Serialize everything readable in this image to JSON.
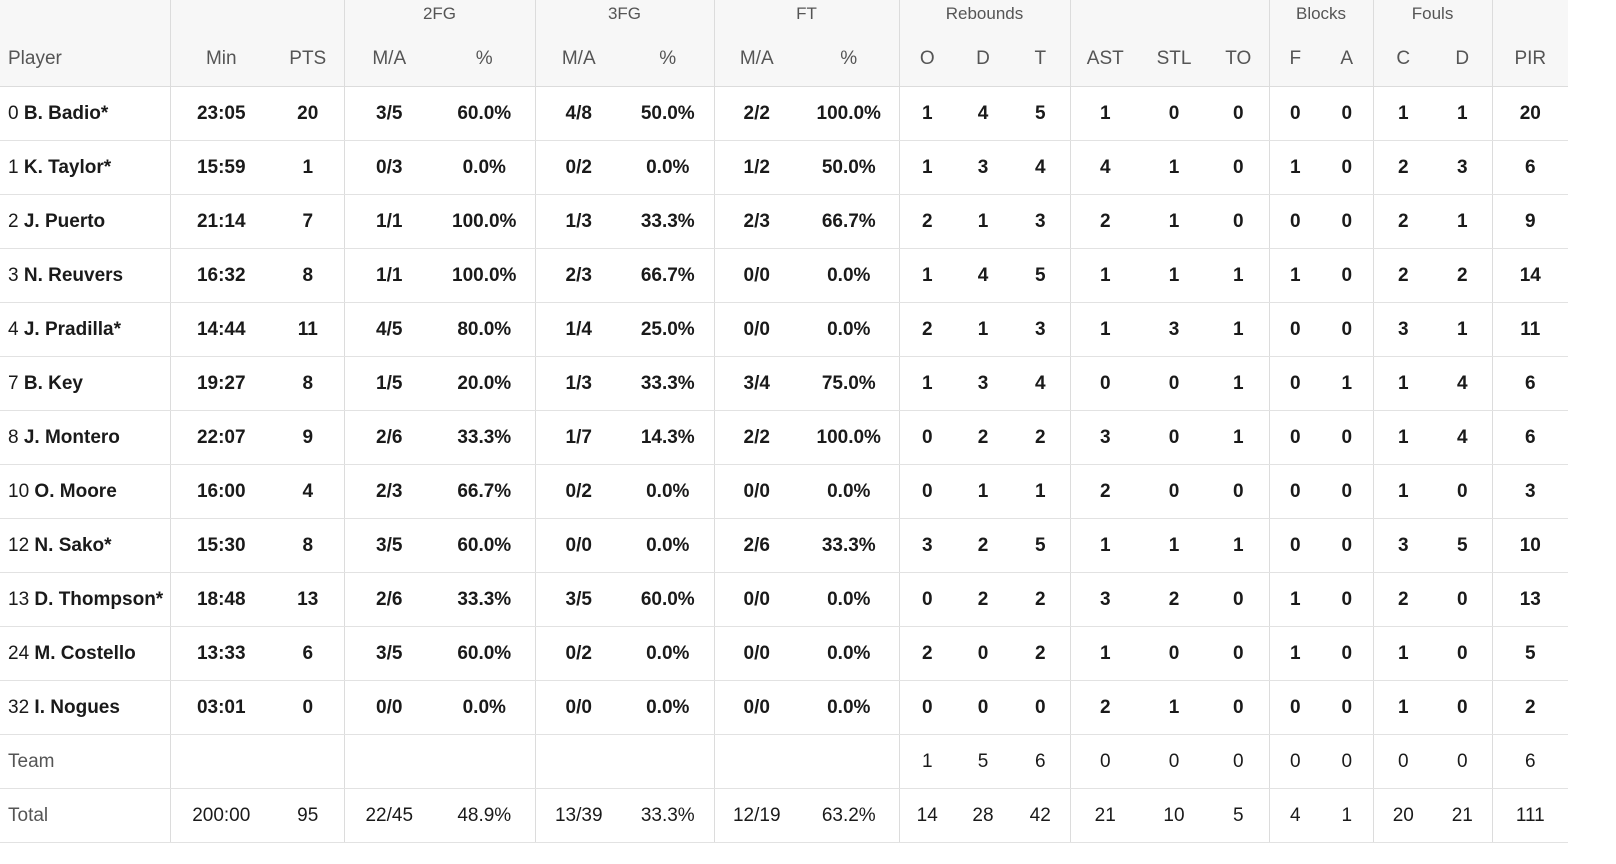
{
  "headers": {
    "groups": {
      "fg2": "2FG",
      "fg3": "3FG",
      "ft": "FT",
      "rebounds": "Rebounds",
      "blocks": "Blocks",
      "fouls": "Fouls"
    },
    "columns": {
      "player": "Player",
      "min": "Min",
      "pts": "PTS",
      "fg2_ma": "M/A",
      "fg2_pct": "%",
      "fg3_ma": "M/A",
      "fg3_pct": "%",
      "ft_ma": "M/A",
      "ft_pct": "%",
      "reb_o": "O",
      "reb_d": "D",
      "reb_t": "T",
      "ast": "AST",
      "stl": "STL",
      "to": "TO",
      "blk_f": "F",
      "blk_a": "A",
      "foul_c": "C",
      "foul_d": "D",
      "pir": "PIR"
    }
  },
  "rows": [
    {
      "num": "0",
      "name": "B. Badio*",
      "min": "23:05",
      "pts": "20",
      "fg2_ma": "3/5",
      "fg2_pct": "60.0%",
      "fg3_ma": "4/8",
      "fg3_pct": "50.0%",
      "ft_ma": "2/2",
      "ft_pct": "100.0%",
      "reb_o": "1",
      "reb_d": "4",
      "reb_t": "5",
      "ast": "1",
      "stl": "0",
      "to": "0",
      "blk_f": "0",
      "blk_a": "0",
      "foul_c": "1",
      "foul_d": "1",
      "pir": "20"
    },
    {
      "num": "1",
      "name": "K. Taylor*",
      "min": "15:59",
      "pts": "1",
      "fg2_ma": "0/3",
      "fg2_pct": "0.0%",
      "fg3_ma": "0/2",
      "fg3_pct": "0.0%",
      "ft_ma": "1/2",
      "ft_pct": "50.0%",
      "reb_o": "1",
      "reb_d": "3",
      "reb_t": "4",
      "ast": "4",
      "stl": "1",
      "to": "0",
      "blk_f": "1",
      "blk_a": "0",
      "foul_c": "2",
      "foul_d": "3",
      "pir": "6"
    },
    {
      "num": "2",
      "name": "J. Puerto",
      "min": "21:14",
      "pts": "7",
      "fg2_ma": "1/1",
      "fg2_pct": "100.0%",
      "fg3_ma": "1/3",
      "fg3_pct": "33.3%",
      "ft_ma": "2/3",
      "ft_pct": "66.7%",
      "reb_o": "2",
      "reb_d": "1",
      "reb_t": "3",
      "ast": "2",
      "stl": "1",
      "to": "0",
      "blk_f": "0",
      "blk_a": "0",
      "foul_c": "2",
      "foul_d": "1",
      "pir": "9"
    },
    {
      "num": "3",
      "name": "N. Reuvers",
      "min": "16:32",
      "pts": "8",
      "fg2_ma": "1/1",
      "fg2_pct": "100.0%",
      "fg3_ma": "2/3",
      "fg3_pct": "66.7%",
      "ft_ma": "0/0",
      "ft_pct": "0.0%",
      "reb_o": "1",
      "reb_d": "4",
      "reb_t": "5",
      "ast": "1",
      "stl": "1",
      "to": "1",
      "blk_f": "1",
      "blk_a": "0",
      "foul_c": "2",
      "foul_d": "2",
      "pir": "14"
    },
    {
      "num": "4",
      "name": "J. Pradilla*",
      "min": "14:44",
      "pts": "11",
      "fg2_ma": "4/5",
      "fg2_pct": "80.0%",
      "fg3_ma": "1/4",
      "fg3_pct": "25.0%",
      "ft_ma": "0/0",
      "ft_pct": "0.0%",
      "reb_o": "2",
      "reb_d": "1",
      "reb_t": "3",
      "ast": "1",
      "stl": "3",
      "to": "1",
      "blk_f": "0",
      "blk_a": "0",
      "foul_c": "3",
      "foul_d": "1",
      "pir": "11"
    },
    {
      "num": "7",
      "name": "B. Key",
      "min": "19:27",
      "pts": "8",
      "fg2_ma": "1/5",
      "fg2_pct": "20.0%",
      "fg3_ma": "1/3",
      "fg3_pct": "33.3%",
      "ft_ma": "3/4",
      "ft_pct": "75.0%",
      "reb_o": "1",
      "reb_d": "3",
      "reb_t": "4",
      "ast": "0",
      "stl": "0",
      "to": "1",
      "blk_f": "0",
      "blk_a": "1",
      "foul_c": "1",
      "foul_d": "4",
      "pir": "6"
    },
    {
      "num": "8",
      "name": "J. Montero",
      "min": "22:07",
      "pts": "9",
      "fg2_ma": "2/6",
      "fg2_pct": "33.3%",
      "fg3_ma": "1/7",
      "fg3_pct": "14.3%",
      "ft_ma": "2/2",
      "ft_pct": "100.0%",
      "reb_o": "0",
      "reb_d": "2",
      "reb_t": "2",
      "ast": "3",
      "stl": "0",
      "to": "1",
      "blk_f": "0",
      "blk_a": "0",
      "foul_c": "1",
      "foul_d": "4",
      "pir": "6"
    },
    {
      "num": "10",
      "name": "O. Moore",
      "min": "16:00",
      "pts": "4",
      "fg2_ma": "2/3",
      "fg2_pct": "66.7%",
      "fg3_ma": "0/2",
      "fg3_pct": "0.0%",
      "ft_ma": "0/0",
      "ft_pct": "0.0%",
      "reb_o": "0",
      "reb_d": "1",
      "reb_t": "1",
      "ast": "2",
      "stl": "0",
      "to": "0",
      "blk_f": "0",
      "blk_a": "0",
      "foul_c": "1",
      "foul_d": "0",
      "pir": "3"
    },
    {
      "num": "12",
      "name": "N. Sako*",
      "min": "15:30",
      "pts": "8",
      "fg2_ma": "3/5",
      "fg2_pct": "60.0%",
      "fg3_ma": "0/0",
      "fg3_pct": "0.0%",
      "ft_ma": "2/6",
      "ft_pct": "33.3%",
      "reb_o": "3",
      "reb_d": "2",
      "reb_t": "5",
      "ast": "1",
      "stl": "1",
      "to": "1",
      "blk_f": "0",
      "blk_a": "0",
      "foul_c": "3",
      "foul_d": "5",
      "pir": "10"
    },
    {
      "num": "13",
      "name": "D. Thompson*",
      "min": "18:48",
      "pts": "13",
      "fg2_ma": "2/6",
      "fg2_pct": "33.3%",
      "fg3_ma": "3/5",
      "fg3_pct": "60.0%",
      "ft_ma": "0/0",
      "ft_pct": "0.0%",
      "reb_o": "0",
      "reb_d": "2",
      "reb_t": "2",
      "ast": "3",
      "stl": "2",
      "to": "0",
      "blk_f": "1",
      "blk_a": "0",
      "foul_c": "2",
      "foul_d": "0",
      "pir": "13"
    },
    {
      "num": "24",
      "name": "M. Costello",
      "min": "13:33",
      "pts": "6",
      "fg2_ma": "3/5",
      "fg2_pct": "60.0%",
      "fg3_ma": "0/2",
      "fg3_pct": "0.0%",
      "ft_ma": "0/0",
      "ft_pct": "0.0%",
      "reb_o": "2",
      "reb_d": "0",
      "reb_t": "2",
      "ast": "1",
      "stl": "0",
      "to": "0",
      "blk_f": "1",
      "blk_a": "0",
      "foul_c": "1",
      "foul_d": "0",
      "pir": "5"
    },
    {
      "num": "32",
      "name": "I. Nogues",
      "min": "03:01",
      "pts": "0",
      "fg2_ma": "0/0",
      "fg2_pct": "0.0%",
      "fg3_ma": "0/0",
      "fg3_pct": "0.0%",
      "ft_ma": "0/0",
      "ft_pct": "0.0%",
      "reb_o": "0",
      "reb_d": "0",
      "reb_t": "0",
      "ast": "2",
      "stl": "1",
      "to": "0",
      "blk_f": "0",
      "blk_a": "0",
      "foul_c": "1",
      "foul_d": "0",
      "pir": "2"
    }
  ],
  "team": {
    "label": "Team",
    "reb_o": "1",
    "reb_d": "5",
    "reb_t": "6",
    "ast": "0",
    "stl": "0",
    "to": "0",
    "blk_f": "0",
    "blk_a": "0",
    "foul_c": "0",
    "foul_d": "0",
    "pir": "6"
  },
  "total": {
    "label": "Total",
    "min": "200:00",
    "pts": "95",
    "fg2_ma": "22/45",
    "fg2_pct": "48.9%",
    "fg3_ma": "13/39",
    "fg3_pct": "33.3%",
    "ft_ma": "12/19",
    "ft_pct": "63.2%",
    "reb_o": "14",
    "reb_d": "28",
    "reb_t": "42",
    "ast": "21",
    "stl": "10",
    "to": "5",
    "blk_f": "4",
    "blk_a": "1",
    "foul_c": "20",
    "foul_d": "21",
    "pir": "111"
  }
}
